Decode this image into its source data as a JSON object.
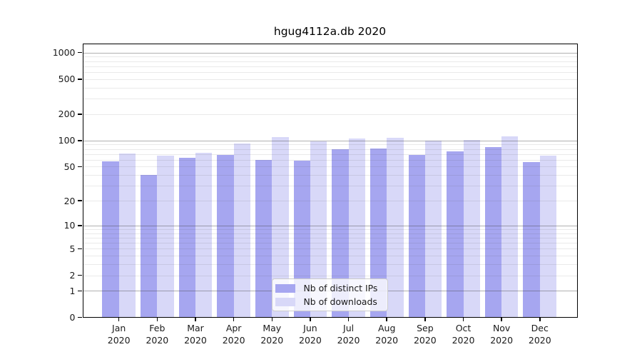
{
  "title": "hgug4112a.db 2020",
  "chart_data": {
    "type": "bar",
    "title": "hgug4112a.db 2020",
    "categories": [
      "Jan",
      "Feb",
      "Mar",
      "Apr",
      "May",
      "Jun",
      "Jul",
      "Aug",
      "Sep",
      "Oct",
      "Nov",
      "Dec"
    ],
    "category_sublabel": "2020",
    "series": [
      {
        "name": "Nb of distinct IPs",
        "color": "#a6a6f0",
        "values": [
          58,
          40,
          63,
          68,
          60,
          59,
          79,
          81,
          68,
          75,
          84,
          56
        ]
      },
      {
        "name": "Nb of downloads",
        "color": "#d8d8f8",
        "values": [
          71,
          67,
          72,
          92,
          109,
          98,
          105,
          108,
          100,
          101,
          112,
          67
        ]
      }
    ],
    "xlabel": "",
    "ylabel": "",
    "y_ticks": [
      0,
      1,
      2,
      5,
      10,
      20,
      50,
      100,
      200,
      500,
      1000
    ],
    "y_major_gridlines": [
      1,
      10,
      100,
      1000
    ],
    "y_scale": "log10(value+1)",
    "ylim": [
      0,
      1258
    ],
    "grid": "horizontal major + minor (2-9 per decade), drawn over bars",
    "legend_position": "inside bottom-center"
  }
}
